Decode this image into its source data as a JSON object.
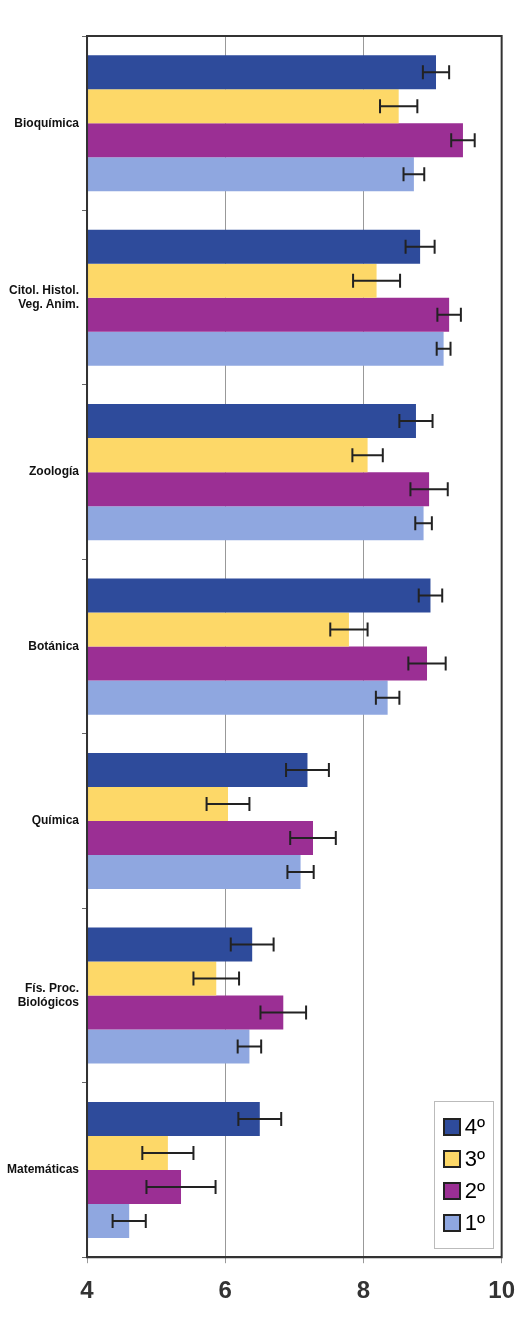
{
  "chart_data": {
    "type": "bar",
    "orientation": "horizontal",
    "categories": [
      "Bioquímica",
      "Citol. Histol. Veg. Anim.",
      "Zoología",
      "Botánica",
      "Química",
      "Fís. Proc. Biológicos",
      "Matemáticas"
    ],
    "series": [
      {
        "name": "4º",
        "color": "#2e4b9b",
        "values": [
          9.05,
          8.82,
          8.76,
          8.97,
          7.19,
          6.39,
          6.5
        ],
        "errors": [
          0.19,
          0.21,
          0.24,
          0.17,
          0.31,
          0.31,
          0.31
        ]
      },
      {
        "name": "3º",
        "color": "#fdd868",
        "values": [
          8.51,
          8.19,
          8.06,
          7.79,
          6.04,
          5.87,
          5.17
        ],
        "errors": [
          0.27,
          0.34,
          0.22,
          0.27,
          0.31,
          0.33,
          0.37
        ]
      },
      {
        "name": "2º",
        "color": "#9b2f94",
        "values": [
          9.44,
          9.24,
          8.95,
          8.92,
          7.27,
          6.84,
          5.36
        ],
        "errors": [
          0.17,
          0.17,
          0.27,
          0.27,
          0.33,
          0.33,
          0.5
        ]
      },
      {
        "name": "1º",
        "color": "#8fa7e0",
        "values": [
          8.73,
          9.16,
          8.87,
          8.35,
          7.09,
          6.35,
          4.61
        ],
        "errors": [
          0.15,
          0.1,
          0.12,
          0.17,
          0.19,
          0.17,
          0.24
        ]
      }
    ],
    "xlim": [
      4,
      10
    ],
    "xticks": [
      4,
      6,
      8,
      10
    ],
    "grid": "x",
    "legend": "bottom right"
  }
}
